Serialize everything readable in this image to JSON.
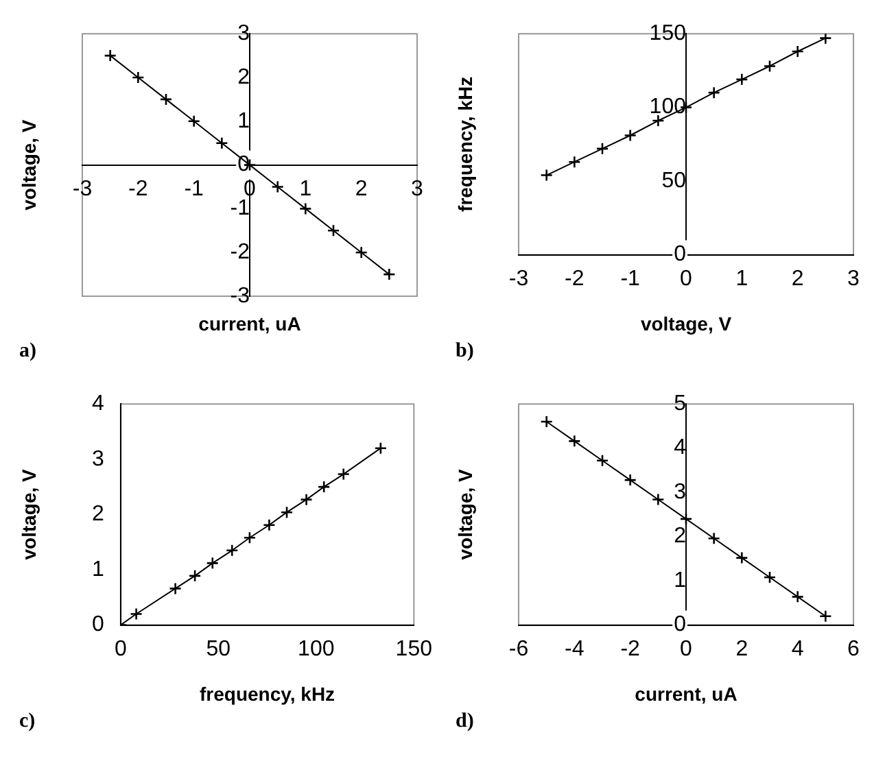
{
  "chart_data": [
    {
      "type": "line",
      "xlabel": "current, uA",
      "ylabel": "voltage, V",
      "annotations": [
        "a)"
      ],
      "marker": "cross",
      "line_style": "solid",
      "x": [
        -2.5,
        -2,
        -1.5,
        -1,
        -0.5,
        0,
        0.5,
        1,
        1.5,
        2,
        2.5
      ],
      "xlim": [
        -3,
        3
      ],
      "xticks": [
        -3,
        -2,
        -1,
        0,
        1,
        2,
        3
      ],
      "ylim": [
        -3,
        3
      ],
      "yticks": [
        -3,
        -2,
        -1,
        0,
        1,
        2,
        3
      ],
      "series": [
        {
          "color": "#000000",
          "values": [
            2.5,
            2,
            1.5,
            1,
            0.5,
            0,
            -0.5,
            -1,
            -1.5,
            -2,
            -2.5
          ]
        }
      ]
    },
    {
      "type": "line",
      "xlabel": "voltage, V",
      "ylabel": "frequency, kHz",
      "annotations": [
        "b)"
      ],
      "marker": "cross",
      "line_style": "solid",
      "x": [
        -2.5,
        -2,
        -1.5,
        -1,
        -0.5,
        0,
        0.5,
        1,
        1.5,
        2,
        2.5
      ],
      "xlim": [
        -3,
        3
      ],
      "xticks": [
        -3,
        -2,
        -1,
        0,
        1,
        2,
        3
      ],
      "ylim": [
        0,
        150
      ],
      "yticks": [
        0,
        50,
        100,
        150
      ],
      "series": [
        {
          "color": "#000000",
          "values": [
            54,
            63,
            72,
            81,
            91,
            100,
            110,
            119,
            128,
            138,
            147
          ]
        }
      ]
    },
    {
      "type": "line",
      "xlabel": "frequency, kHz",
      "ylabel": "voltage, V",
      "annotations": [
        "c)"
      ],
      "marker": "cross",
      "line_style": "solid",
      "x": [
        0,
        8,
        28,
        38,
        47,
        57,
        66,
        76,
        85,
        95,
        104,
        114,
        133
      ],
      "xlim": [
        0,
        150
      ],
      "xticks": [
        0,
        50,
        100,
        150
      ],
      "ylim": [
        0,
        4
      ],
      "yticks": [
        0,
        1,
        2,
        3,
        4
      ],
      "series": [
        {
          "color": "#000000",
          "values": [
            0,
            0.2,
            0.66,
            0.89,
            1.12,
            1.35,
            1.58,
            1.81,
            2.04,
            2.27,
            2.5,
            2.73,
            3.2
          ]
        }
      ]
    },
    {
      "type": "line",
      "xlabel": "current, uA",
      "ylabel": "voltage, V",
      "annotations": [
        "d)"
      ],
      "marker": "cross",
      "line_style": "solid",
      "x": [
        -5,
        -4,
        -3,
        -2,
        -1,
        0,
        1,
        2,
        3,
        4,
        5
      ],
      "xlim": [
        -6,
        6
      ],
      "xticks": [
        -6,
        -4,
        -2,
        0,
        2,
        4,
        6
      ],
      "ylim": [
        0,
        5
      ],
      "yticks": [
        0,
        1,
        2,
        3,
        4,
        5
      ],
      "series": [
        {
          "color": "#000000",
          "values": [
            4.6,
            4.16,
            3.72,
            3.28,
            2.84,
            2.4,
            1.96,
            1.52,
            1.08,
            0.64,
            0.2
          ]
        }
      ]
    }
  ]
}
